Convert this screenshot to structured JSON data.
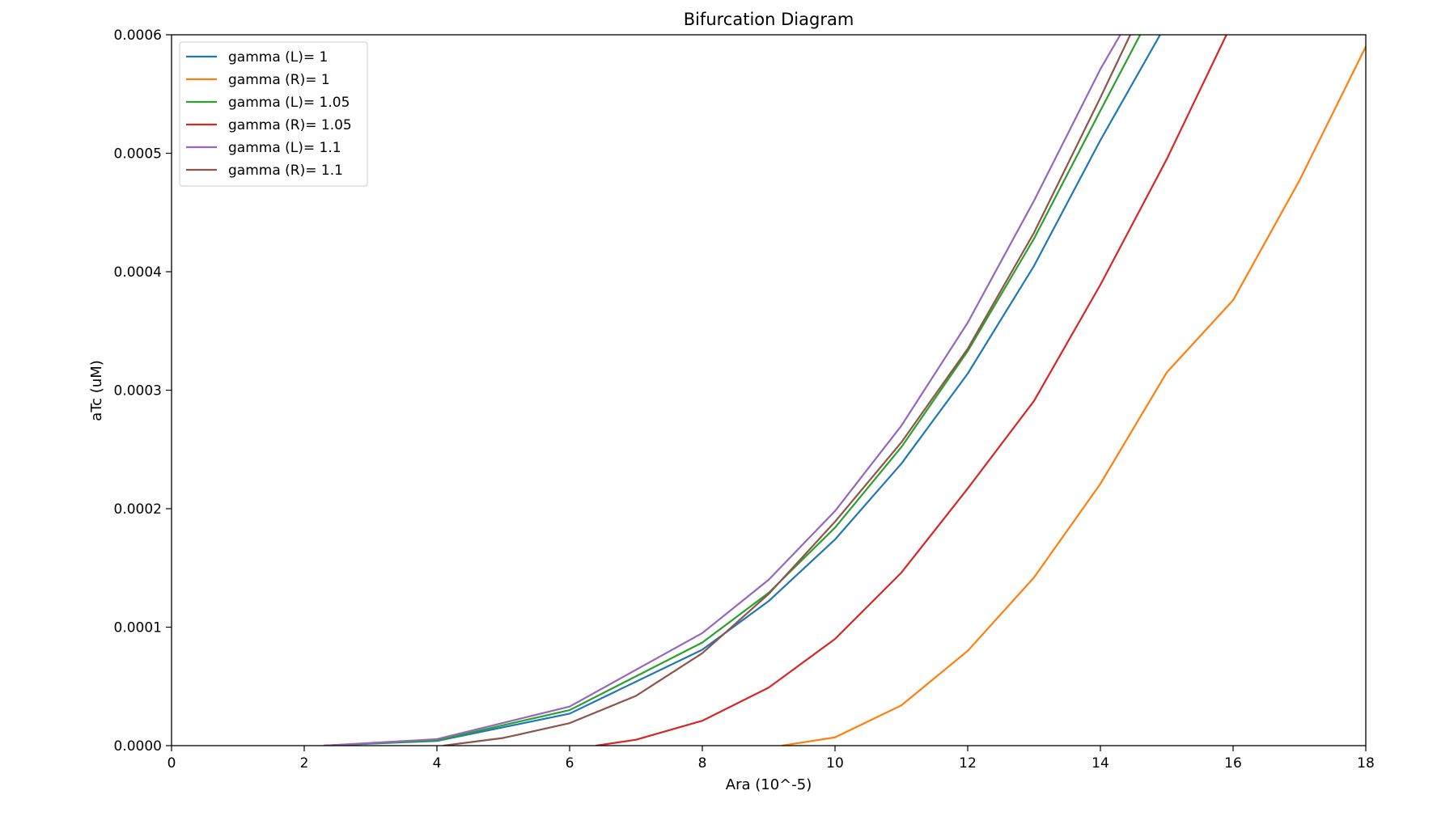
{
  "chart_data": {
    "type": "line",
    "title": "Bifurcation Diagram",
    "xlabel": "Ara (10^-5)",
    "ylabel": "aTc (uM)",
    "xlim": [
      0,
      18
    ],
    "ylim": [
      0,
      0.0006
    ],
    "xticks": [
      0,
      2,
      4,
      6,
      8,
      10,
      12,
      14,
      16,
      18
    ],
    "xtick_labels": [
      "0",
      "2",
      "4",
      "6",
      "8",
      "10",
      "12",
      "14",
      "16",
      "18"
    ],
    "yticks": [
      0,
      0.0001,
      0.0002,
      0.0003,
      0.0004,
      0.0005,
      0.0006
    ],
    "ytick_labels": [
      "0.0000",
      "0.0001",
      "0.0002",
      "0.0003",
      "0.0004",
      "0.0005",
      "0.0006"
    ],
    "grid": false,
    "legend_position": "upper-left",
    "series": [
      {
        "name": "gamma (L)= 1",
        "color": "#1f77b4",
        "x": [
          2.3,
          4,
          6,
          8,
          9,
          10,
          11,
          12,
          13,
          14,
          14.9
        ],
        "y": [
          0,
          4e-06,
          2.7e-05,
          8.1e-05,
          0.000122,
          0.000174,
          0.000238,
          0.000314,
          0.000405,
          0.000511,
          0.0006
        ]
      },
      {
        "name": "gamma (R)= 1",
        "color": "#ff7f0e",
        "x": [
          9.2,
          10,
          11,
          12,
          13,
          14,
          15,
          16,
          17,
          18
        ],
        "y": [
          0,
          7e-06,
          3.4e-05,
          8e-05,
          0.000142,
          0.000221,
          0.000315,
          0.000376,
          0.000477,
          0.00059
        ]
      },
      {
        "name": "gamma (L)= 1.05",
        "color": "#2ca02c",
        "x": [
          2.3,
          4,
          6,
          8,
          9,
          10,
          11,
          12,
          13,
          14,
          14.6
        ],
        "y": [
          0,
          4.5e-06,
          3e-05,
          8.7e-05,
          0.000129,
          0.000184,
          0.000252,
          0.000333,
          0.000428,
          0.000536,
          0.0006
        ]
      },
      {
        "name": "gamma (R)= 1.05",
        "color": "#d62728",
        "x": [
          6.4,
          7,
          8,
          9,
          10,
          11,
          12,
          13,
          14,
          15,
          15.9
        ],
        "y": [
          0,
          5e-06,
          2.1e-05,
          4.9e-05,
          9e-05,
          0.000146,
          0.000217,
          0.000291,
          0.000389,
          0.000495,
          0.0006
        ]
      },
      {
        "name": "gamma (L)= 1.1",
        "color": "#9467bd",
        "x": [
          2.3,
          4,
          6,
          8,
          9,
          10,
          11,
          12,
          13,
          14,
          14.3
        ],
        "y": [
          0,
          5.5e-06,
          3.3e-05,
          9.5e-05,
          0.00014,
          0.000198,
          0.00027,
          0.000357,
          0.00046,
          0.000571,
          0.0006
        ]
      },
      {
        "name": "gamma (R)= 1.1",
        "color": "#8c564b",
        "x": [
          4.1,
          5,
          6,
          7,
          8,
          9,
          10,
          11,
          12,
          13,
          14,
          14.45
        ],
        "y": [
          0,
          6.5e-06,
          1.9e-05,
          4.2e-05,
          7.8e-05,
          0.000128,
          0.000189,
          0.000256,
          0.000335,
          0.000433,
          0.000547,
          0.0006
        ]
      }
    ]
  }
}
